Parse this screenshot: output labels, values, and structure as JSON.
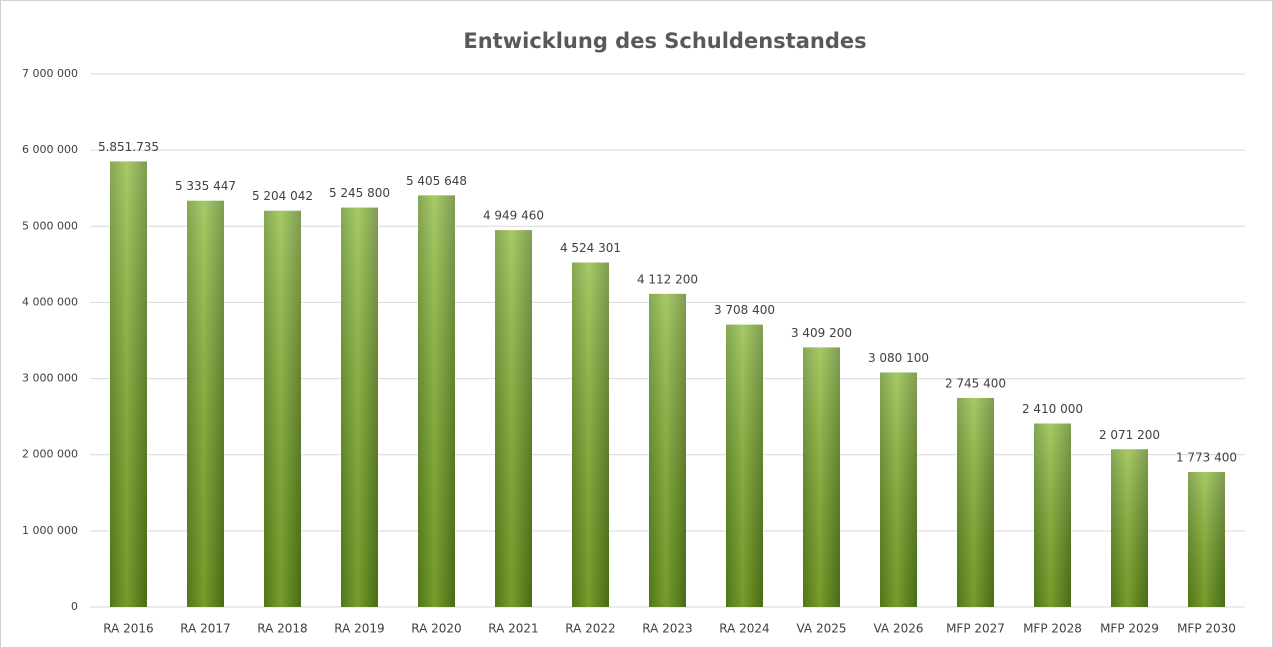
{
  "chart_data": {
    "type": "bar",
    "title": "Entwicklung des Schuldenstandes",
    "categories": [
      "RA 2016",
      "RA 2017",
      "RA 2018",
      "RA 2019",
      "RA 2020",
      "RA 2021",
      "RA 2022",
      "RA 2023",
      "RA 2024",
      "VA 2025",
      "VA 2026",
      "MFP 2027",
      "MFP 2028",
      "MFP 2029",
      "MFP 2030"
    ],
    "values": [
      5851735,
      5335447,
      5204042,
      5245800,
      5405648,
      4949460,
      4524301,
      4112200,
      3708400,
      3409200,
      3080100,
      2745400,
      2410000,
      2071200,
      1773400
    ],
    "value_labels": [
      "5.851.735",
      "5 335 447",
      "5 204 042",
      "5 245 800",
      "5 405 648",
      "4 949 460",
      "4 524 301",
      "4 112 200",
      "3 708 400",
      "3 409 200",
      "3 080 100",
      "2 745 400",
      "2 410 000",
      "2 071 200",
      "1 773 400"
    ],
    "color": "#8ab833",
    "ylim": [
      0,
      7000000
    ],
    "yticks": [
      0,
      {
        "value": 1000000,
        "label": "1 000 000"
      },
      {
        "value": 2000000,
        "label": "2 000 000"
      },
      {
        "value": 3000000,
        "label": "3 000 000"
      },
      {
        "value": 4000000,
        "label": "4 000 000"
      },
      {
        "value": 5000000,
        "label": "5 000 000"
      },
      {
        "value": 6000000,
        "label": "6 000 000"
      },
      {
        "value": 7000000,
        "label": "7 000 000"
      }
    ],
    "grid": true
  }
}
